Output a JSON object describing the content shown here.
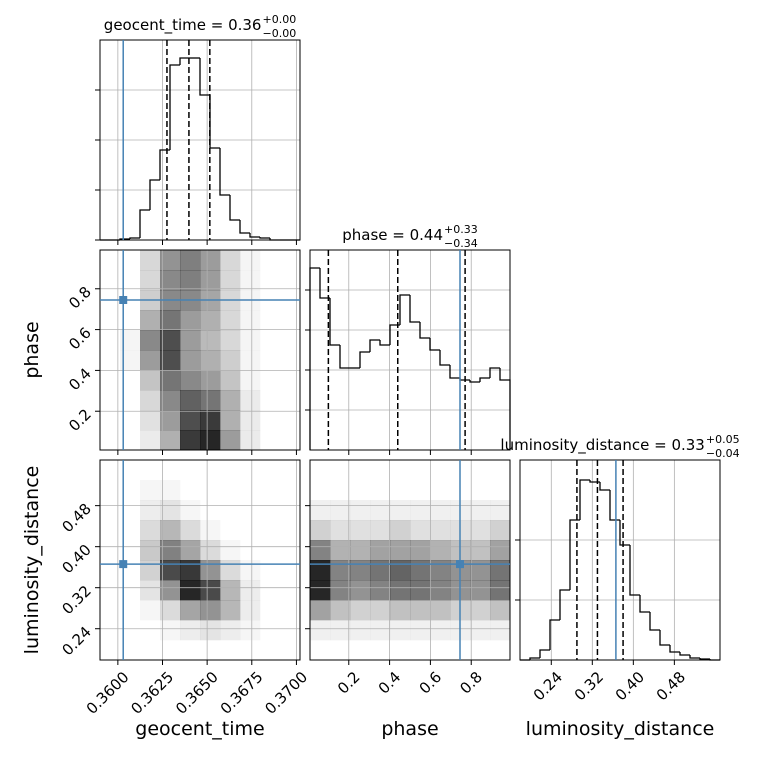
{
  "chart_data": {
    "type": "corner",
    "truth_color": "#4682b4",
    "grid": true,
    "parameters": [
      {
        "label": "geocent_time",
        "title": "geocent_time = 0.36",
        "title_upper": "+0.00",
        "title_lower": "−0.00",
        "lim": [
          0.359,
          0.3702
        ],
        "ticks": [
          {
            "value": 0.36,
            "label": "0.3600"
          },
          0.3625,
          {
            "value": 0.365,
            "label": "0.3650"
          },
          0.3675,
          {
            "value": 0.37,
            "label": "0.3700"
          }
        ],
        "truth": 0.3603,
        "quantiles": [
          0.36275,
          0.36398,
          0.36515
        ],
        "bins": [
          0.359,
          0.35956,
          0.36012,
          0.36068,
          0.36124,
          0.3618,
          0.36236,
          0.36292,
          0.36348,
          0.36404,
          0.3646,
          0.36516,
          0.36572,
          0.36628,
          0.36684,
          0.3674,
          0.36796,
          0.36852,
          0.36908,
          0.36964,
          0.3702
        ],
        "counts": [
          0,
          0,
          1,
          2,
          30,
          60,
          90,
          175,
          182,
          182,
          145,
          92,
          45,
          20,
          7,
          3,
          2,
          0,
          0,
          0
        ],
        "hist_ylim": [
          0,
          200
        ],
        "hist_yticks": [
          0,
          50,
          100,
          150
        ]
      },
      {
        "label": "phase",
        "title": "phase = 0.44",
        "title_upper": "+0.33",
        "title_lower": "−0.34",
        "lim": [
          0.01,
          0.99
        ],
        "ticks": [
          0.2,
          0.4,
          0.6,
          0.8
        ],
        "truth": 0.745,
        "quantiles": [
          0.1,
          0.44,
          0.77
        ],
        "bins": [
          0.01,
          0.059,
          0.108,
          0.157,
          0.206,
          0.255,
          0.304,
          0.353,
          0.402,
          0.451,
          0.5,
          0.549,
          0.598,
          0.647,
          0.696,
          0.745,
          0.794,
          0.843,
          0.892,
          0.941,
          0.99
        ],
        "counts": [
          182,
          152,
          105,
          82,
          82,
          98,
          110,
          105,
          125,
          155,
          128,
          112,
          100,
          85,
          72,
          70,
          68,
          72,
          82,
          70
        ],
        "hist_ylim": [
          0,
          200
        ],
        "hist_yticks": [
          40,
          80,
          120,
          160
        ]
      },
      {
        "label": "luminosity_distance",
        "title": "luminosity_distance = 0.33",
        "title_upper": "+0.05",
        "title_lower": "−0.04",
        "lim": [
          0.179,
          0.569
        ],
        "ticks": [
          0.24,
          0.32,
          {
            "value": 0.4,
            "label": "0.40"
          },
          0.48
        ],
        "truth": 0.366,
        "quantiles": [
          0.29,
          0.33,
          0.38
        ],
        "bins": [
          0.179,
          0.1985,
          0.218,
          0.2375,
          0.257,
          0.2765,
          0.296,
          0.3155,
          0.335,
          0.3545,
          0.374,
          0.3935,
          0.413,
          0.4325,
          0.452,
          0.4715,
          0.491,
          0.5105,
          0.53,
          0.5495,
          0.569
        ],
        "counts": [
          0,
          2,
          10,
          40,
          70,
          140,
          180,
          178,
          170,
          140,
          115,
          65,
          48,
          30,
          15,
          8,
          5,
          2,
          1,
          0
        ],
        "hist_ylim": [
          0,
          200
        ],
        "hist_yticks": [
          60,
          120
        ]
      }
    ],
    "pairs": [
      {
        "x": 0,
        "y": 1,
        "x_edges": [
          0.359,
          0.36012,
          0.36124,
          0.36236,
          0.36348,
          0.3646,
          0.36572,
          0.36684,
          0.36796,
          0.36908,
          0.3702
        ],
        "y_edges": [
          0.01,
          0.108,
          0.206,
          0.304,
          0.402,
          0.5,
          0.598,
          0.696,
          0.794,
          0.892,
          0.99
        ],
        "counts": [
          [
            0,
            0,
            2,
            8,
            20,
            22,
            10,
            2,
            0,
            0
          ],
          [
            0,
            0,
            3,
            10,
            18,
            20,
            8,
            2,
            0,
            0
          ],
          [
            0,
            0,
            4,
            12,
            16,
            14,
            8,
            2,
            0,
            0
          ],
          [
            0,
            0,
            6,
            14,
            12,
            10,
            6,
            1,
            0,
            0
          ],
          [
            0,
            1,
            10,
            18,
            10,
            8,
            5,
            1,
            0,
            0
          ],
          [
            0,
            1,
            12,
            18,
            10,
            7,
            4,
            1,
            0,
            0
          ],
          [
            0,
            0,
            8,
            14,
            10,
            8,
            4,
            1,
            0,
            0
          ],
          [
            0,
            0,
            5,
            12,
            12,
            9,
            4,
            1,
            0,
            0
          ],
          [
            0,
            0,
            4,
            12,
            13,
            10,
            4,
            1,
            0,
            0
          ],
          [
            0,
            0,
            4,
            11,
            13,
            10,
            4,
            1,
            0,
            0
          ]
        ]
      },
      {
        "x": 0,
        "y": 2,
        "x_edges": [
          0.359,
          0.36012,
          0.36124,
          0.36236,
          0.36348,
          0.3646,
          0.36572,
          0.36684,
          0.36796,
          0.36908,
          0.3702
        ],
        "y_edges": [
          0.179,
          0.218,
          0.257,
          0.296,
          0.335,
          0.374,
          0.413,
          0.452,
          0.491,
          0.53,
          0.569
        ],
        "counts": [
          [
            0,
            0,
            0,
            0,
            0,
            0,
            0,
            0,
            0,
            0
          ],
          [
            0,
            0,
            0,
            1,
            2,
            3,
            2,
            1,
            0,
            0
          ],
          [
            0,
            0,
            1,
            4,
            10,
            12,
            8,
            2,
            0,
            0
          ],
          [
            0,
            0,
            3,
            12,
            24,
            20,
            8,
            2,
            0,
            0
          ],
          [
            0,
            0,
            5,
            20,
            22,
            12,
            4,
            1,
            0,
            0
          ],
          [
            0,
            0,
            6,
            14,
            10,
            4,
            1,
            0,
            0,
            0
          ],
          [
            0,
            0,
            4,
            8,
            4,
            1,
            0,
            0,
            0,
            0
          ],
          [
            0,
            0,
            2,
            3,
            1,
            0,
            0,
            0,
            0,
            0
          ],
          [
            0,
            0,
            1,
            1,
            0,
            0,
            0,
            0,
            0,
            0
          ],
          [
            0,
            0,
            0,
            0,
            0,
            0,
            0,
            0,
            0,
            0
          ]
        ]
      },
      {
        "x": 1,
        "y": 2,
        "x_edges": [
          0.01,
          0.108,
          0.206,
          0.304,
          0.402,
          0.5,
          0.598,
          0.696,
          0.794,
          0.892,
          0.99
        ],
        "y_edges": [
          0.179,
          0.218,
          0.257,
          0.296,
          0.335,
          0.374,
          0.413,
          0.452,
          0.491,
          0.53,
          0.569
        ],
        "counts": [
          [
            0,
            0,
            0,
            0,
            0,
            0,
            0,
            0,
            0,
            0
          ],
          [
            1,
            1,
            1,
            1,
            1,
            1,
            1,
            1,
            1,
            1
          ],
          [
            6,
            4,
            3,
            3,
            4,
            4,
            4,
            3,
            3,
            4
          ],
          [
            14,
            8,
            7,
            8,
            9,
            9,
            8,
            7,
            7,
            9
          ],
          [
            14,
            8,
            8,
            9,
            10,
            9,
            8,
            7,
            7,
            9
          ],
          [
            8,
            5,
            5,
            6,
            6,
            6,
            5,
            4,
            4,
            6
          ],
          [
            3,
            2,
            2,
            2,
            3,
            2,
            2,
            2,
            2,
            3
          ],
          [
            1,
            1,
            1,
            1,
            1,
            1,
            1,
            1,
            1,
            1
          ],
          [
            0,
            0,
            0,
            0,
            0,
            0,
            0,
            0,
            0,
            0
          ],
          [
            0,
            0,
            0,
            0,
            0,
            0,
            0,
            0,
            0,
            0
          ]
        ]
      }
    ]
  }
}
